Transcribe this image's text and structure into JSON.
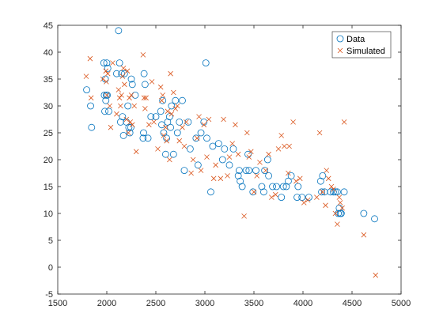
{
  "chart_data": {
    "type": "scatter",
    "xlim": [
      1500,
      5000
    ],
    "ylim": [
      -5,
      45
    ],
    "x_ticks": [
      1500,
      2000,
      2500,
      3000,
      3500,
      4000,
      4500,
      5000
    ],
    "y_ticks": [
      -5,
      0,
      5,
      10,
      15,
      20,
      25,
      30,
      35,
      40,
      45
    ],
    "grid": false,
    "legend_placement": "top-right",
    "colors": {
      "data": "#0072BD",
      "simulated": "#D95319",
      "axis": "#262626"
    },
    "series": [
      {
        "name": "Data",
        "marker": "circle",
        "x": [
          1795,
          1835,
          1845,
          1970,
          1975,
          1980,
          1985,
          1990,
          1995,
          2000,
          2005,
          2010,
          2020,
          2100,
          2120,
          2130,
          2140,
          2150,
          2160,
          2170,
          2180,
          2200,
          2215,
          2225,
          2235,
          2245,
          2250,
          2260,
          2290,
          2370,
          2375,
          2380,
          2390,
          2420,
          2450,
          2500,
          2550,
          2560,
          2570,
          2580,
          2600,
          2610,
          2620,
          2640,
          2650,
          2660,
          2680,
          2700,
          2720,
          2740,
          2770,
          2790,
          2830,
          2850,
          2910,
          2930,
          2960,
          2990,
          3010,
          3020,
          3060,
          3080,
          3140,
          3180,
          3200,
          3250,
          3290,
          3340,
          3350,
          3360,
          3380,
          3420,
          3440,
          3450,
          3490,
          3520,
          3580,
          3600,
          3610,
          3640,
          3650,
          3690,
          3730,
          3780,
          3800,
          3830,
          3850,
          3880,
          3940,
          3950,
          3990,
          4060,
          4180,
          4190,
          4200,
          4220,
          4280,
          4310,
          4330,
          4350,
          4360,
          4370,
          4380,
          4390,
          4420,
          4620,
          4730
        ],
        "y": [
          33,
          30,
          26,
          38,
          32,
          29,
          35,
          31,
          32,
          38,
          32,
          37,
          29,
          36,
          44,
          38,
          27,
          36,
          28,
          24.5,
          36,
          27,
          30,
          26,
          25,
          26,
          35,
          34,
          32,
          24,
          25,
          36,
          34,
          24,
          28,
          28,
          29,
          26.5,
          31,
          25,
          21,
          24,
          27,
          28,
          26,
          30,
          21,
          31,
          25,
          27,
          31,
          18,
          27,
          22,
          24,
          19,
          25,
          27,
          38,
          24,
          14,
          22.5,
          23,
          20,
          22,
          19,
          22,
          17,
          18,
          16,
          15,
          18,
          21,
          18,
          14,
          18,
          15,
          14,
          18,
          20,
          17,
          15,
          15,
          13,
          15,
          15,
          16,
          17,
          13,
          15,
          13,
          13,
          16,
          14,
          17,
          14,
          14,
          14,
          14,
          14,
          10,
          11,
          10,
          10,
          14,
          10,
          9
        ]
      },
      {
        "name": "Simulated",
        "marker": "cross",
        "x": [
          1790,
          1830,
          1840,
          1960,
          1990,
          1995,
          2000,
          2010,
          2030,
          2040,
          2060,
          2100,
          2120,
          2130,
          2140,
          2150,
          2160,
          2170,
          2180,
          2200,
          2210,
          2220,
          2230,
          2240,
          2250,
          2260,
          2280,
          2300,
          2370,
          2380,
          2390,
          2400,
          2430,
          2460,
          2480,
          2520,
          2550,
          2560,
          2570,
          2580,
          2600,
          2610,
          2620,
          2640,
          2650,
          2660,
          2680,
          2700,
          2720,
          2740,
          2770,
          2790,
          2810,
          2860,
          2880,
          2920,
          2940,
          2960,
          2990,
          3020,
          3040,
          3090,
          3110,
          3160,
          3190,
          3230,
          3250,
          3280,
          3310,
          3340,
          3400,
          3430,
          3450,
          3470,
          3500,
          3530,
          3560,
          3620,
          3650,
          3680,
          3720,
          3750,
          3780,
          3810,
          3850,
          3860,
          3900,
          3930,
          3970,
          4010,
          4050,
          4140,
          4170,
          4200,
          4230,
          4240,
          4260,
          4290,
          4310,
          4330,
          4350,
          4370,
          4380,
          4400,
          4420,
          4620,
          4740
        ],
        "y": [
          35.5,
          38.8,
          31.5,
          35,
          36.5,
          34.5,
          32,
          36,
          30,
          26,
          38,
          28.5,
          33,
          31.5,
          30,
          32,
          35.5,
          37,
          34,
          27.5,
          36.5,
          25,
          31.5,
          27,
          32,
          26.5,
          30,
          21.5,
          39.5,
          31.5,
          29.5,
          31.5,
          26.5,
          34.5,
          27,
          22,
          33.5,
          31,
          32,
          24.5,
          26,
          23.5,
          29,
          20,
          36,
          28.5,
          32.5,
          29.5,
          30,
          23.5,
          26,
          22.5,
          27,
          17.5,
          20,
          24,
          28,
          18,
          26.5,
          20.5,
          27.5,
          16.5,
          19,
          16.5,
          27.5,
          17,
          20.5,
          23,
          26.5,
          21,
          9.5,
          25,
          20.5,
          21.5,
          14,
          17,
          19.5,
          18,
          21,
          13,
          13.5,
          22,
          24.5,
          22.5,
          17.5,
          22.5,
          27,
          16,
          16.5,
          12,
          12.5,
          13,
          25,
          14,
          11.5,
          18,
          16.5,
          15,
          14.5,
          10,
          8,
          13,
          12,
          11,
          27,
          6,
          -1.5
        ]
      }
    ]
  }
}
